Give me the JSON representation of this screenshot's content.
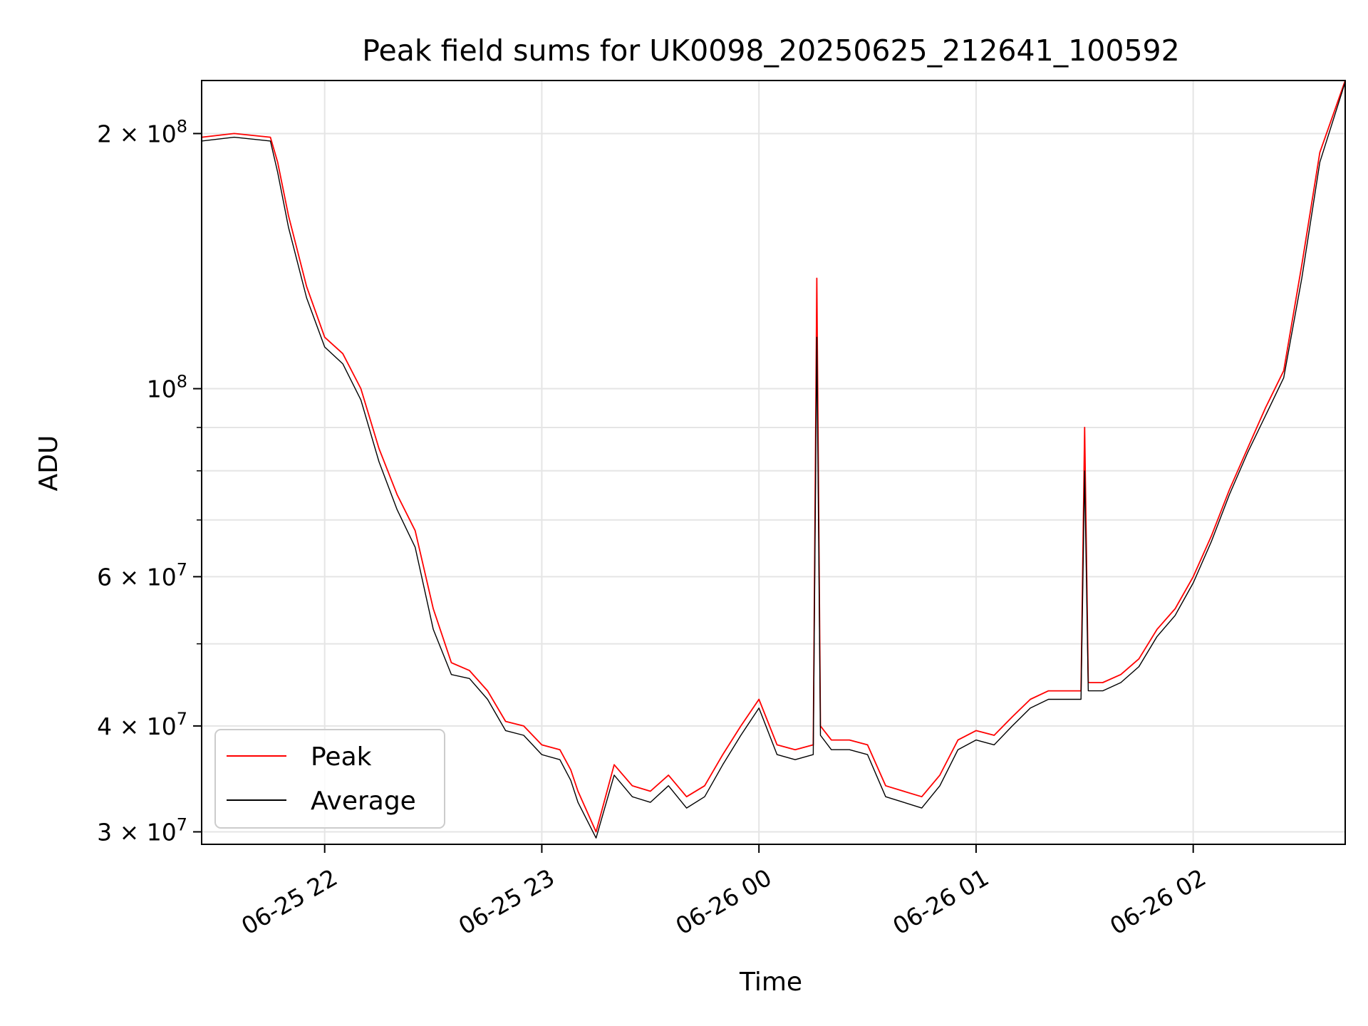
{
  "chart_data": {
    "type": "line",
    "title": "Peak field sums for UK0098_20250625_212641_100592",
    "xlabel": "Time",
    "ylabel": "ADU",
    "yscale": "log",
    "ylim": [
      29000000,
      231000000
    ],
    "xlim": [
      "2025-06-25 21:26",
      "2025-06-26 02:42"
    ],
    "grid": true,
    "legend": {
      "placement": "lower-left",
      "entries": [
        "Peak",
        "Average"
      ]
    },
    "x_ticks": [
      "06-25 22",
      "06-25 23",
      "06-26 00",
      "06-26 01",
      "06-26 02"
    ],
    "y_ticks": [
      {
        "value": 30000000,
        "base": "3",
        "exp": "7"
      },
      {
        "value": 40000000,
        "base": "4",
        "exp": "7"
      },
      {
        "value": 60000000,
        "base": "6",
        "exp": "7"
      },
      {
        "value": 100000000,
        "base": "",
        "exp": "8"
      },
      {
        "value": 200000000,
        "base": "2",
        "exp": "8"
      }
    ],
    "minor_y_ticks": [
      50000000,
      70000000,
      80000000,
      90000000
    ],
    "colors": {
      "Peak": "#ff0000",
      "Average": "#000000"
    },
    "x": [
      "2025-06-25 21:26",
      "2025-06-25 21:35",
      "2025-06-25 21:45",
      "2025-06-25 21:47",
      "2025-06-25 21:50",
      "2025-06-25 21:55",
      "2025-06-25 22:00",
      "2025-06-25 22:05",
      "2025-06-25 22:10",
      "2025-06-25 22:15",
      "2025-06-25 22:20",
      "2025-06-25 22:25",
      "2025-06-25 22:30",
      "2025-06-25 22:35",
      "2025-06-25 22:40",
      "2025-06-25 22:45",
      "2025-06-25 22:50",
      "2025-06-25 22:55",
      "2025-06-25 23:00",
      "2025-06-25 23:05",
      "2025-06-25 23:08",
      "2025-06-25 23:10",
      "2025-06-25 23:15",
      "2025-06-25 23:20",
      "2025-06-25 23:25",
      "2025-06-25 23:30",
      "2025-06-25 23:35",
      "2025-06-25 23:40",
      "2025-06-25 23:45",
      "2025-06-25 23:50",
      "2025-06-25 23:55",
      "2025-06-26 00:00",
      "2025-06-26 00:05",
      "2025-06-26 00:10",
      "2025-06-26 00:15",
      "2025-06-26 00:16",
      "2025-06-26 00:17",
      "2025-06-26 00:20",
      "2025-06-26 00:25",
      "2025-06-26 00:30",
      "2025-06-26 00:35",
      "2025-06-26 00:40",
      "2025-06-26 00:45",
      "2025-06-26 00:50",
      "2025-06-26 00:55",
      "2025-06-26 01:00",
      "2025-06-26 01:05",
      "2025-06-26 01:10",
      "2025-06-26 01:15",
      "2025-06-26 01:20",
      "2025-06-26 01:25",
      "2025-06-26 01:29",
      "2025-06-26 01:30",
      "2025-06-26 01:31",
      "2025-06-26 01:35",
      "2025-06-26 01:40",
      "2025-06-26 01:45",
      "2025-06-26 01:50",
      "2025-06-26 01:55",
      "2025-06-26 02:00",
      "2025-06-26 02:05",
      "2025-06-26 02:10",
      "2025-06-26 02:15",
      "2025-06-26 02:20",
      "2025-06-26 02:25",
      "2025-06-26 02:30",
      "2025-06-26 02:35",
      "2025-06-26 02:42"
    ],
    "series": [
      {
        "name": "Peak",
        "values": [
          198000000,
          200000000,
          198000000,
          185000000,
          160000000,
          132000000,
          115000000,
          110000000,
          100000000,
          85000000,
          75000000,
          68000000,
          55000000,
          47500000,
          46500000,
          44000000,
          40500000,
          40000000,
          38000000,
          37500000,
          35500000,
          33500000,
          30000000,
          36000000,
          34000000,
          33500000,
          35000000,
          33000000,
          34000000,
          37000000,
          40000000,
          43000000,
          38000000,
          37500000,
          38000000,
          135000000,
          40000000,
          38500000,
          38500000,
          38000000,
          34000000,
          33500000,
          33000000,
          35000000,
          38500000,
          39500000,
          39000000,
          41000000,
          43000000,
          44000000,
          44000000,
          44000000,
          90000000,
          45000000,
          45000000,
          46000000,
          48000000,
          52000000,
          55000000,
          60000000,
          67000000,
          76000000,
          85000000,
          95000000,
          105000000,
          140000000,
          190000000,
          231000000
        ]
      },
      {
        "name": "Average",
        "values": [
          196000000,
          198000000,
          196000000,
          180000000,
          155000000,
          128000000,
          112000000,
          107000000,
          97000000,
          82000000,
          72000000,
          65000000,
          52000000,
          46000000,
          45500000,
          43000000,
          39500000,
          39000000,
          37000000,
          36500000,
          34500000,
          32500000,
          29500000,
          35000000,
          33000000,
          32500000,
          34000000,
          32000000,
          33000000,
          36000000,
          39000000,
          42000000,
          37000000,
          36500000,
          37000000,
          115000000,
          39000000,
          37500000,
          37500000,
          37000000,
          33000000,
          32500000,
          32000000,
          34000000,
          37500000,
          38500000,
          38000000,
          40000000,
          42000000,
          43000000,
          43000000,
          43000000,
          80000000,
          44000000,
          44000000,
          45000000,
          47000000,
          51000000,
          54000000,
          59000000,
          66000000,
          75000000,
          84000000,
          93000000,
          103000000,
          135000000,
          185000000,
          230000000
        ]
      }
    ]
  }
}
